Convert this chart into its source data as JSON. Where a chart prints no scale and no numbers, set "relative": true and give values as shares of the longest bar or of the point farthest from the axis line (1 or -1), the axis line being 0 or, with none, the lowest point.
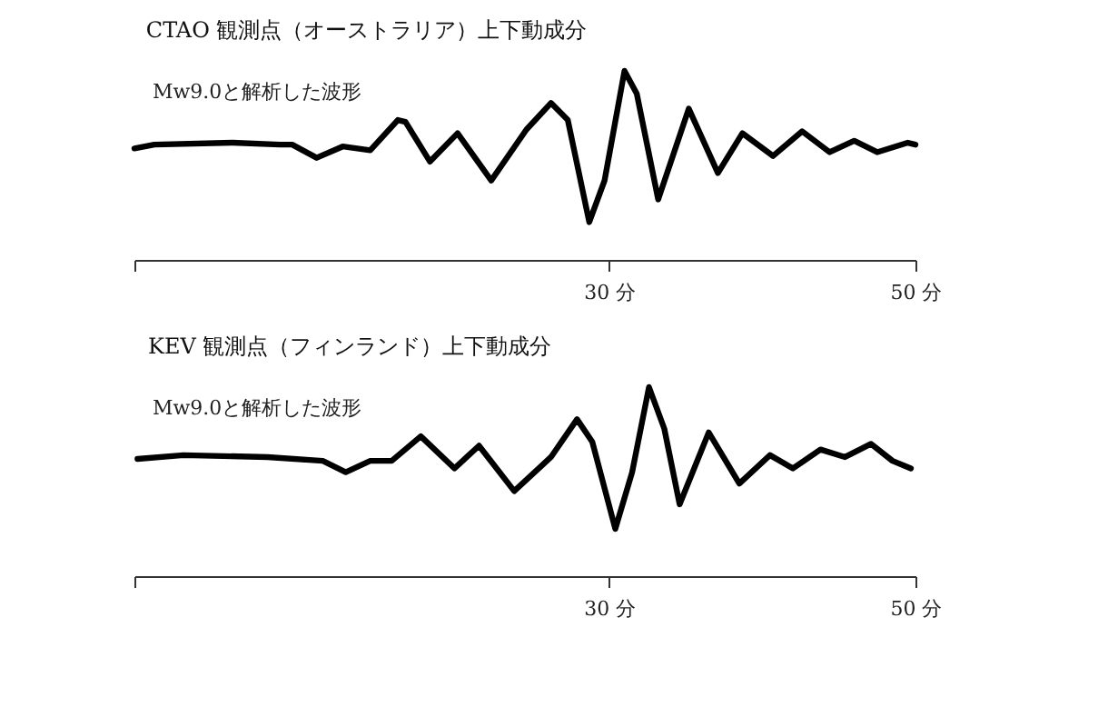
{
  "chart_data": [
    {
      "type": "line",
      "title": "CTAO 観測点（オーストラリア）上下動成分",
      "relative": true,
      "xlim": [
        -1,
        50
      ],
      "xticks": [
        {
          "value": -1,
          "label": null
        },
        {
          "value": 30,
          "label": "30 分"
        },
        {
          "value": 50,
          "label": "50 分"
        }
      ],
      "grid": false,
      "marker": "none",
      "line_style": "solid",
      "series": [
        {
          "name": "Mw9.0と解析した波形",
          "color": "#000000",
          "x": [
            -1.0,
            0.3,
            5.4,
            8.5,
            9.3,
            10.9,
            12.6,
            14.4,
            16.2,
            16.7,
            18.3,
            20.1,
            22.3,
            24.6,
            26.2,
            27.3,
            28.7,
            29.7,
            31.0,
            31.8,
            33.2,
            35.2,
            37.1,
            38.7,
            40.7,
            42.6,
            44.4,
            46.0,
            47.5,
            49.5,
            50.0
          ],
          "values": [
            0.59,
            0.61,
            0.62,
            0.61,
            0.61,
            0.54,
            0.6,
            0.58,
            0.74,
            0.73,
            0.52,
            0.67,
            0.42,
            0.69,
            0.83,
            0.74,
            0.2,
            0.42,
            1.0,
            0.88,
            0.32,
            0.8,
            0.46,
            0.67,
            0.55,
            0.68,
            0.57,
            0.63,
            0.57,
            0.62,
            0.61
          ]
        }
      ]
    },
    {
      "type": "line",
      "title": "KEV 観測点（フィンランド）上下動成分",
      "relative": true,
      "xlim": [
        -1,
        50
      ],
      "xticks": [
        {
          "value": -1,
          "label": null
        },
        {
          "value": 30,
          "label": "30 分"
        },
        {
          "value": 50,
          "label": "50 分"
        }
      ],
      "grid": false,
      "marker": "none",
      "line_style": "solid",
      "series": [
        {
          "name": "Mw9.0と解析した波形",
          "color": "#000000",
          "x": [
            -0.8,
            2.2,
            7.7,
            11.3,
            12.8,
            14.4,
            15.8,
            17.7,
            19.9,
            21.5,
            23.8,
            26.2,
            27.9,
            28.9,
            30.4,
            31.5,
            32.6,
            33.6,
            34.6,
            36.5,
            38.5,
            40.5,
            42.0,
            43.8,
            45.4,
            47.1,
            48.5,
            49.7
          ],
          "values": [
            0.62,
            0.64,
            0.63,
            0.61,
            0.55,
            0.61,
            0.61,
            0.74,
            0.57,
            0.69,
            0.45,
            0.63,
            0.83,
            0.71,
            0.25,
            0.55,
            1.0,
            0.78,
            0.38,
            0.76,
            0.49,
            0.64,
            0.57,
            0.67,
            0.63,
            0.7,
            0.61,
            0.57
          ]
        }
      ]
    }
  ]
}
